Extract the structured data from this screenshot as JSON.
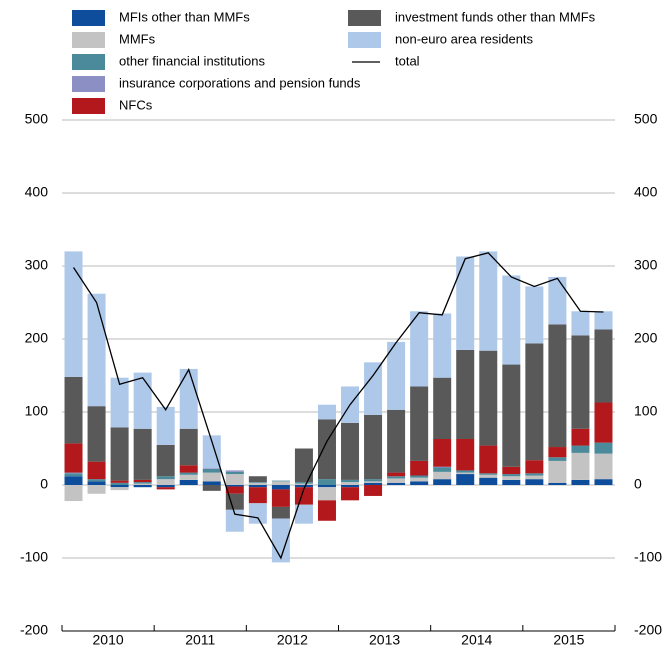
{
  "chart_data": {
    "type": "stacked-bar-line",
    "year_labels": [
      "2010",
      "2011",
      "2012",
      "2013",
      "2014",
      "2015"
    ],
    "bars_per_year": 4,
    "ylim": [
      -200,
      500
    ],
    "yticks": [
      -200,
      -100,
      0,
      100,
      200,
      300,
      400,
      500
    ],
    "grid": true,
    "series": [
      {
        "name": "MFIs other than MMFs",
        "color": "#0d4d9b",
        "values": [
          12,
          5,
          -3,
          -3,
          -3,
          7,
          5,
          -2,
          -3,
          -6,
          -3,
          -3,
          -3,
          3,
          3,
          5,
          8,
          15,
          10,
          7,
          8,
          3,
          7,
          8
        ]
      },
      {
        "name": "MMFs",
        "color": "#c3c3c3",
        "values": [
          -22,
          -12,
          -4,
          2,
          8,
          7,
          12,
          15,
          3,
          5,
          2,
          -18,
          4,
          2,
          6,
          5,
          10,
          2,
          4,
          5,
          5,
          30,
          37,
          35
        ]
      },
      {
        "name": "other financial institutions",
        "color": "#4a8a9a",
        "values": [
          4,
          3,
          3,
          2,
          4,
          3,
          5,
          3,
          1,
          1,
          2,
          8,
          3,
          3,
          3,
          3,
          6,
          3,
          2,
          3,
          3,
          5,
          10,
          15
        ]
      },
      {
        "name": "insurance corporations and pension funds",
        "color": "#8c8fc4",
        "values": [
          1,
          0,
          0,
          0,
          0,
          0,
          1,
          2,
          0,
          0,
          0,
          0,
          0,
          0,
          0,
          0,
          1,
          0,
          0,
          0,
          0,
          0,
          0,
          0
        ]
      },
      {
        "name": "NFCs",
        "color": "#b3191c",
        "values": [
          40,
          24,
          3,
          3,
          -3,
          10,
          0,
          -10,
          -22,
          -24,
          -24,
          -28,
          -18,
          -15,
          5,
          20,
          38,
          43,
          38,
          10,
          18,
          14,
          23,
          55
        ]
      },
      {
        "name": "investment funds other than MMFs",
        "color": "#595959",
        "values": [
          91,
          76,
          73,
          70,
          43,
          50,
          -8,
          -22,
          8,
          -16,
          46,
          82,
          78,
          88,
          86,
          102,
          84,
          122,
          130,
          140,
          160,
          168,
          128,
          100
        ]
      },
      {
        "name": "non-euro area residents",
        "color": "#aec8ea",
        "values": [
          172,
          154,
          68,
          77,
          52,
          82,
          45,
          -30,
          -28,
          -60,
          -26,
          20,
          50,
          72,
          93,
          103,
          88,
          128,
          136,
          122,
          78,
          65,
          33,
          25
        ]
      }
    ],
    "line": {
      "name": "total",
      "color": "#000000",
      "values": [
        298,
        250,
        138,
        147,
        103,
        158,
        60,
        -40,
        -45,
        -100,
        -5,
        60,
        110,
        150,
        195,
        236,
        233,
        310,
        318,
        285,
        272,
        283,
        238,
        237
      ]
    }
  }
}
